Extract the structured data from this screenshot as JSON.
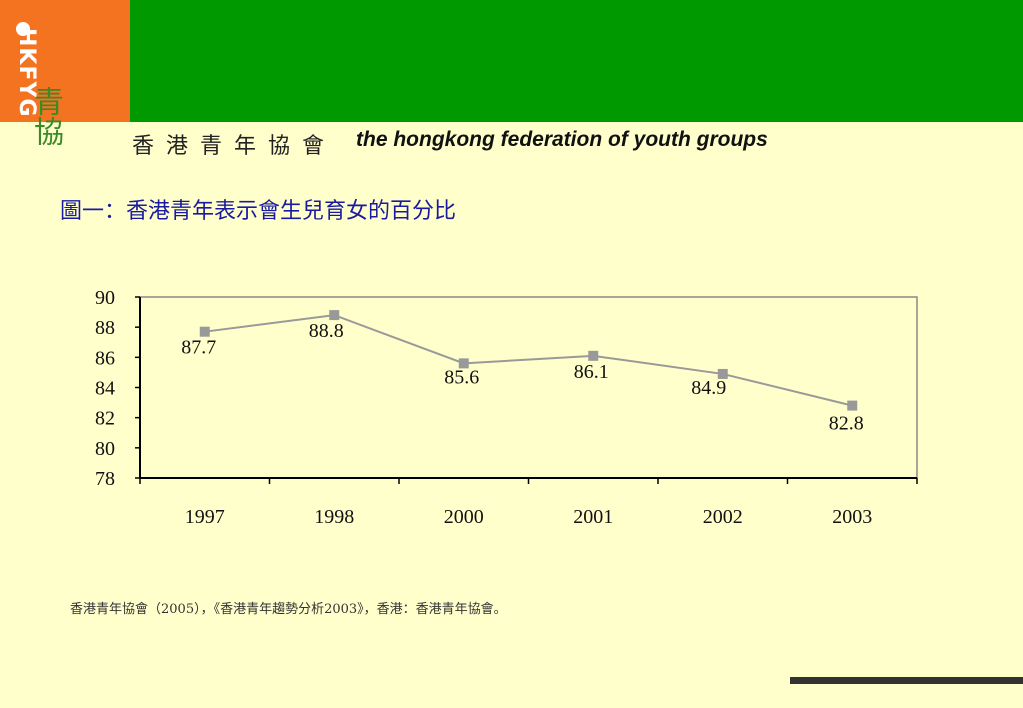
{
  "header": {
    "logo_text": "HKFYG",
    "logo_chars": "青協",
    "org_name_zh": "香港青年協會",
    "org_name_en": "the hongkong federation of youth groups",
    "colors": {
      "orange": "#F47321",
      "green": "#009900",
      "background": "#FFFFCC"
    }
  },
  "figure_title": "圖一：香港青年表示會生兒育女的百分比",
  "source_note": "香港青年協會（2005），《香港青年趨勢分析2003》，香港：香港青年協會。",
  "chart_data": {
    "type": "line",
    "title": "",
    "xlabel": "",
    "ylabel": "",
    "categories": [
      "1997",
      "1998",
      "2000",
      "2001",
      "2002",
      "2003"
    ],
    "series": [
      {
        "values": [
          87.7,
          88.8,
          85.6,
          86.1,
          84.9,
          82.8
        ],
        "color": "#999999"
      }
    ],
    "data_labels": [
      "87.7",
      "88.8",
      "85.6",
      "86.1",
      "84.9",
      "82.8"
    ],
    "ylim": [
      78,
      90
    ],
    "yticks": [
      "90",
      "88",
      "86",
      "84",
      "82",
      "80",
      "78"
    ],
    "grid": false,
    "legend": "none"
  }
}
